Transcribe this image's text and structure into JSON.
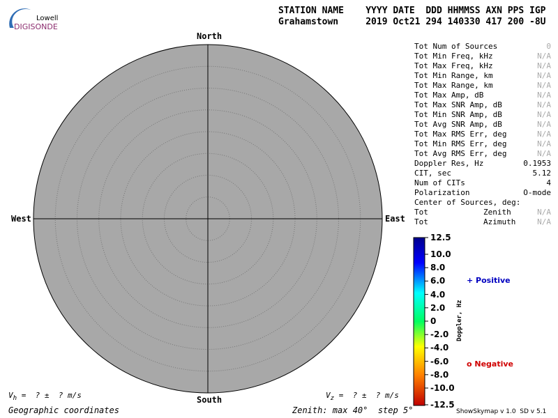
{
  "header": {
    "logo_top": "Lowell",
    "logo_bottom": "DIGISONDE",
    "labels": "STATION NAME    YYYY DATE  DDD HHMMSS AXN PPS IGP",
    "values": "Grahamstown     2019 Oct21 294 140330 417 200 -8U"
  },
  "skymap": {
    "north": "North",
    "south": "South",
    "east": "East",
    "west": "West",
    "rings": 8
  },
  "stats": {
    "rows": [
      {
        "label": "Tot Num of Sources",
        "value": 0,
        "color": "#aaaaaa"
      },
      {
        "label": "Tot Min Freq, kHz",
        "value": "N/A",
        "color": "#aaaaaa"
      },
      {
        "label": "Tot Max Freq, kHz",
        "value": "N/A",
        "color": "#aaaaaa"
      },
      {
        "label": "Tot Min Range, km",
        "value": "N/A",
        "color": "#aaaaaa"
      },
      {
        "label": "Tot Max Range, km",
        "value": "N/A",
        "color": "#aaaaaa"
      },
      {
        "label": "Tot Max Amp, dB",
        "value": "N/A",
        "color": "#aaaaaa"
      },
      {
        "label": "Tot Max SNR Amp, dB",
        "value": "N/A",
        "color": "#aaaaaa"
      },
      {
        "label": "Tot Min SNR Amp, dB",
        "value": "N/A",
        "color": "#aaaaaa"
      },
      {
        "label": "Tot Avg SNR Amp, dB",
        "value": "N/A",
        "color": "#aaaaaa"
      },
      {
        "label": "Tot Max RMS Err, deg",
        "value": "N/A",
        "color": "#aaaaaa"
      },
      {
        "label": "Tot Min RMS Err, deg",
        "value": "N/A",
        "color": "#aaaaaa"
      },
      {
        "label": "Tot Avg RMS Err, deg",
        "value": "N/A",
        "color": "#aaaaaa"
      },
      {
        "label": "Doppler Res, Hz",
        "value": 0.1953,
        "color": "#000000"
      },
      {
        "label": "CIT, sec",
        "value": 5.12,
        "color": "#000000"
      },
      {
        "label": "Num of CITs",
        "value": 4,
        "color": "#000000"
      },
      {
        "label": "Polarization",
        "value": "O-mode",
        "color": "#000000"
      }
    ],
    "center_heading": "Center of Sources, deg:",
    "center_rows": [
      {
        "label": "Tot",
        "field": "Zenith",
        "value": "N/A"
      },
      {
        "label": "Tot",
        "field": "Azimuth",
        "value": "N/A"
      }
    ]
  },
  "colorbar": {
    "title": "Doppler, Hz",
    "ticks": [
      12.5,
      {
        "value": 10,
        "label": "10.0"
      },
      {
        "value": 8,
        "label": "8.0"
      },
      {
        "value": 6,
        "label": "6.0"
      },
      {
        "value": 4,
        "label": "4.0"
      },
      {
        "value": 2,
        "label": "2.0"
      },
      0,
      {
        "value": -2,
        "label": "-2.0"
      },
      {
        "value": -4,
        "label": "-4.0"
      },
      {
        "value": -6,
        "label": "-6.0"
      },
      {
        "value": -8,
        "label": "-8.0"
      },
      {
        "value": -10,
        "label": "-10.0"
      },
      -12.5
    ],
    "positive": "+ Positive",
    "negative": "o Negative"
  },
  "footer": {
    "vh_symbol": "V",
    "vh_sub": "h",
    "vh_text": "=  ? ±  ? m/s",
    "vz_symbol": "V",
    "vz_sub": "z",
    "vz_text": "=  ? ±  ? m/s",
    "coords": "Geographic coordinates",
    "zenith": "Zenith: max 40°  step 5°",
    "version": "ShowSkymap v 1.0  SD v 5.1"
  }
}
